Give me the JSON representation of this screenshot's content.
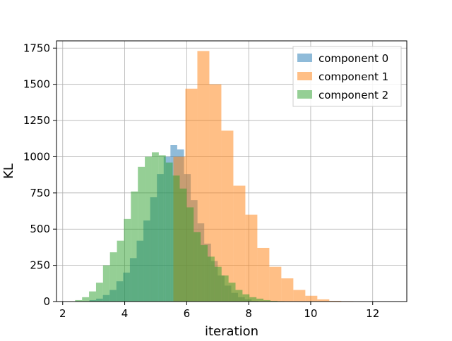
{
  "chart_data": {
    "type": "bar",
    "title": "",
    "xlabel": "iteration",
    "ylabel": "KL",
    "xlim": [
      1.8,
      13.1
    ],
    "ylim": [
      0,
      1800
    ],
    "xticks": [
      2,
      4,
      6,
      8,
      10,
      12
    ],
    "yticks": [
      0,
      250,
      500,
      750,
      1000,
      1250,
      1500,
      1750
    ],
    "grid": true,
    "legend_position": "top-right",
    "bar_opacity": 0.5,
    "series": [
      {
        "name": "component 0",
        "color": "#1f77b4",
        "bin_start": 2.86,
        "bin_width": 0.218,
        "values": [
          10,
          20,
          45,
          80,
          140,
          200,
          300,
          420,
          560,
          720,
          880,
          1000,
          1080,
          1050,
          880,
          700,
          540,
          400,
          280,
          180,
          110,
          60,
          30,
          15,
          5
        ]
      },
      {
        "name": "component 1",
        "color": "#ff7f0e",
        "bin_start": 5.57,
        "bin_width": 0.387,
        "values": [
          1000,
          1470,
          1730,
          1500,
          1180,
          800,
          600,
          370,
          240,
          160,
          80,
          40,
          15,
          5,
          3,
          2,
          1,
          1
        ]
      },
      {
        "name": "component 2",
        "color": "#2ca02c",
        "bin_start": 2.4,
        "bin_width": 0.225,
        "values": [
          10,
          30,
          70,
          130,
          250,
          340,
          420,
          570,
          760,
          930,
          1000,
          1030,
          1010,
          960,
          870,
          780,
          650,
          480,
          390,
          310,
          240,
          180,
          130,
          80,
          50,
          30,
          20,
          10,
          5,
          3,
          2
        ]
      }
    ]
  }
}
